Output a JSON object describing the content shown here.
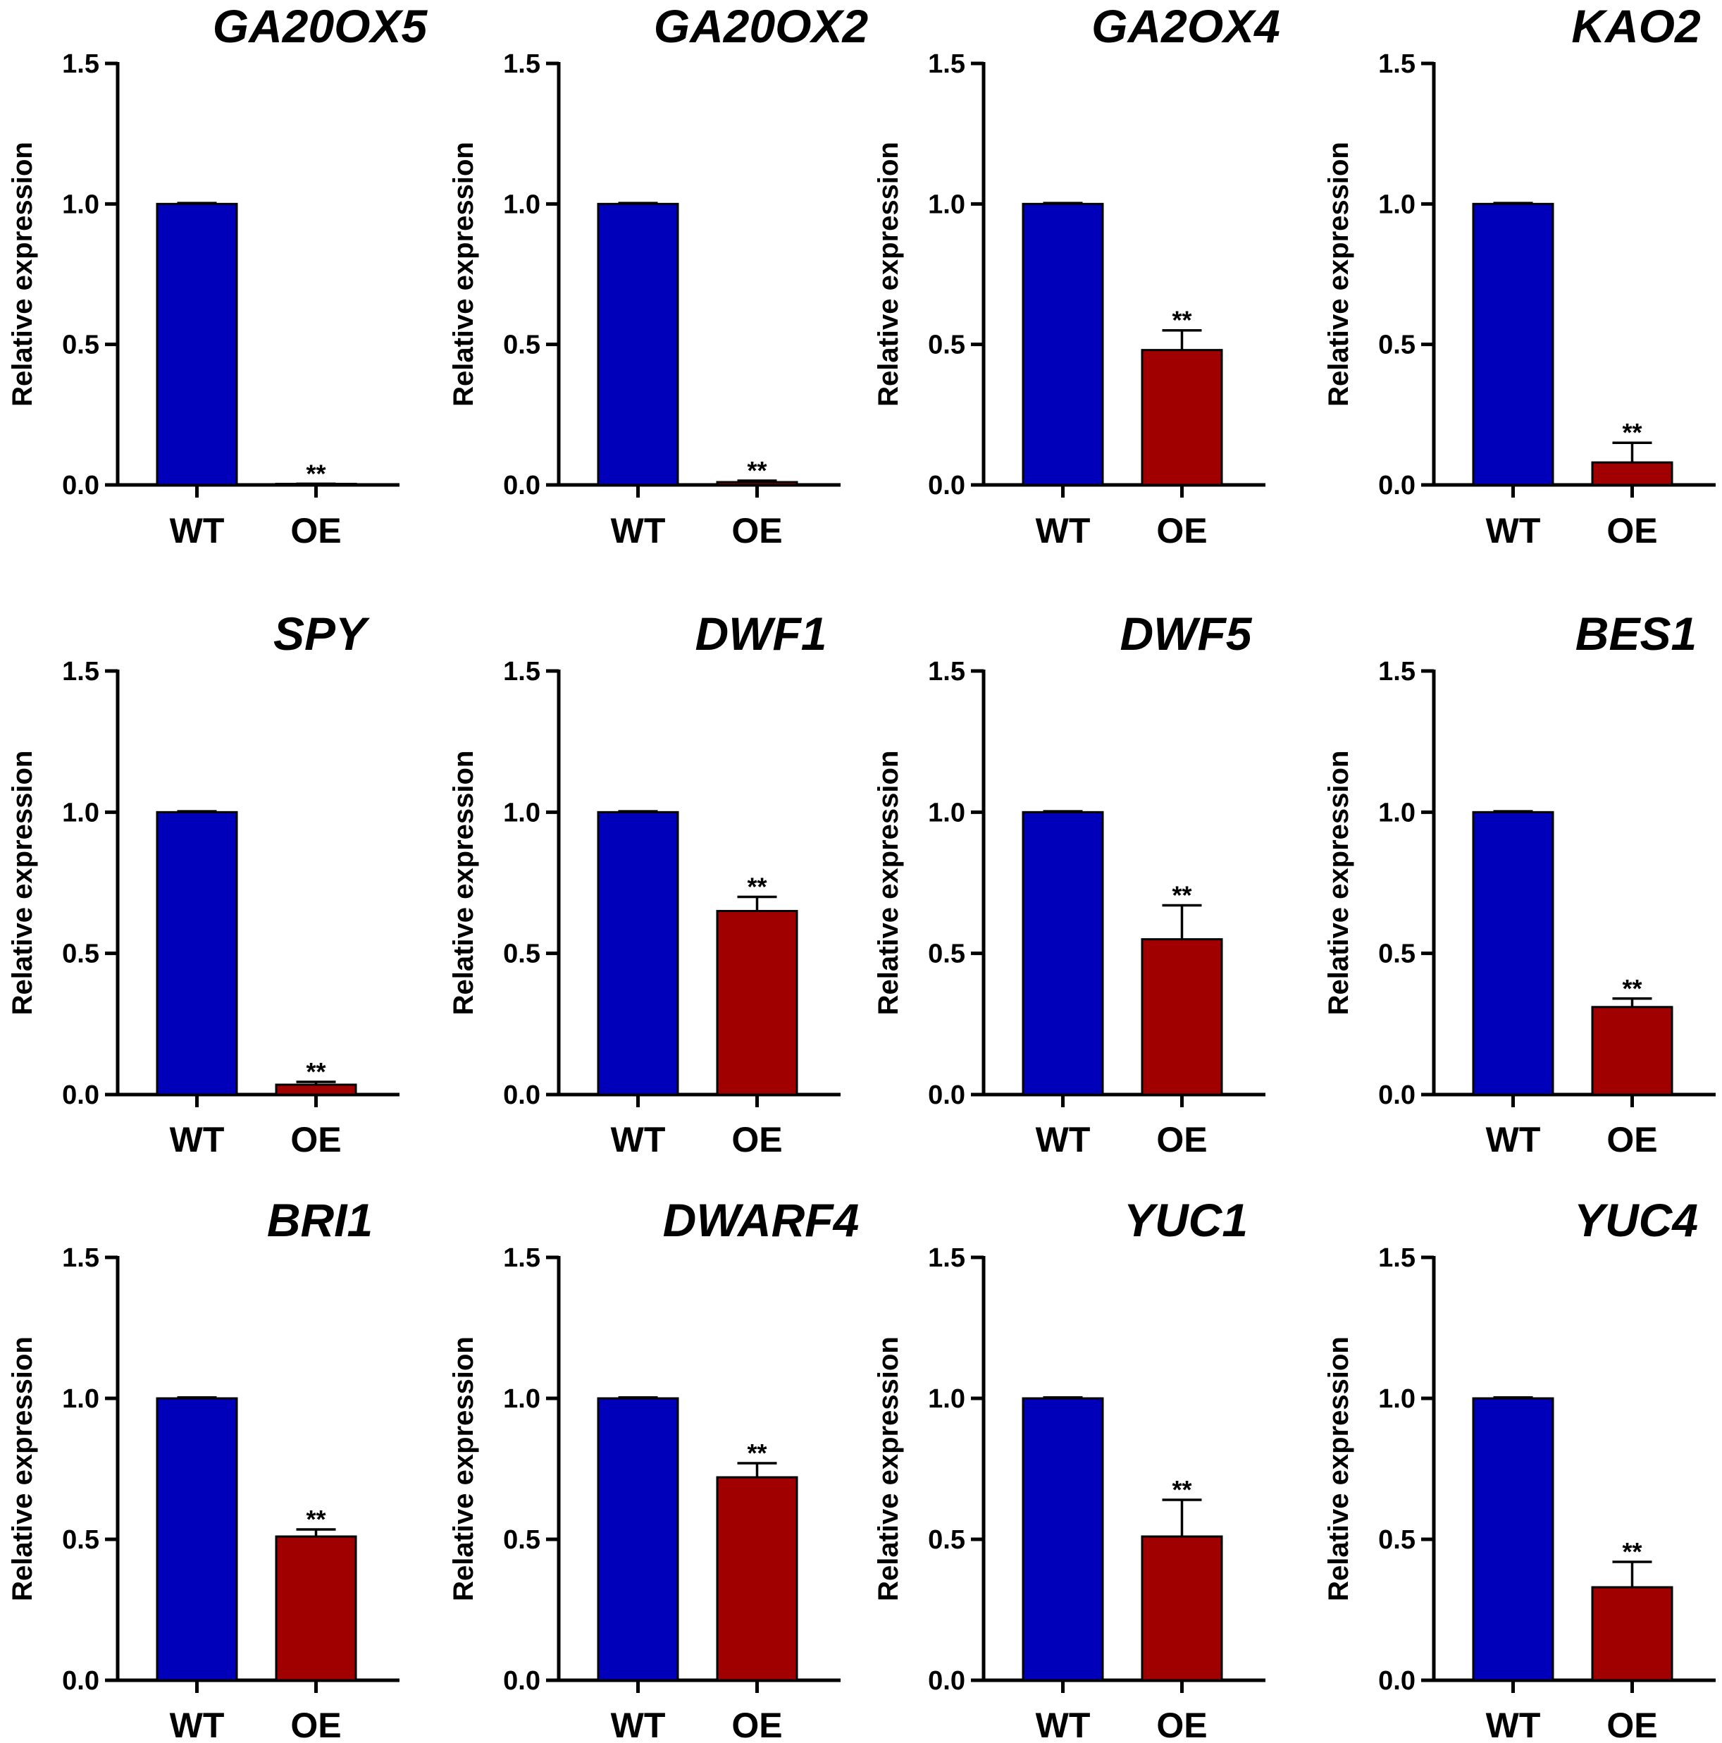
{
  "chart_data": [
    {
      "type": "bar",
      "title": "GA20OX5",
      "ylabel": "Relative expression",
      "xlabel": "",
      "categories": [
        "WT",
        "OE"
      ],
      "values": [
        1.0,
        0.002
      ],
      "errors": [
        0.003,
        0.002
      ],
      "significance": [
        "",
        "**"
      ],
      "ylim": [
        0,
        1.5
      ],
      "yticks": [
        "0.0",
        "0.5",
        "1.0",
        "1.5"
      ]
    },
    {
      "type": "bar",
      "title": "GA20OX2",
      "ylabel": "Relative expression",
      "xlabel": "",
      "categories": [
        "WT",
        "OE"
      ],
      "values": [
        1.0,
        0.01
      ],
      "errors": [
        0.003,
        0.005
      ],
      "significance": [
        "",
        "**"
      ],
      "ylim": [
        0,
        1.5
      ],
      "yticks": [
        "0.0",
        "0.5",
        "1.0",
        "1.5"
      ]
    },
    {
      "type": "bar",
      "title": "GA2OX4",
      "ylabel": "Relative expression",
      "xlabel": "",
      "categories": [
        "WT",
        "OE"
      ],
      "values": [
        1.0,
        0.48
      ],
      "errors": [
        0.003,
        0.07
      ],
      "significance": [
        "",
        "**"
      ],
      "ylim": [
        0,
        1.5
      ],
      "yticks": [
        "0.0",
        "0.5",
        "1.0",
        "1.5"
      ]
    },
    {
      "type": "bar",
      "title": "KAO2",
      "ylabel": "Relative expression",
      "xlabel": "",
      "categories": [
        "WT",
        "OE"
      ],
      "values": [
        1.0,
        0.08
      ],
      "errors": [
        0.003,
        0.07
      ],
      "significance": [
        "",
        "**"
      ],
      "ylim": [
        0,
        1.5
      ],
      "yticks": [
        "0.0",
        "0.5",
        "1.0",
        "1.5"
      ]
    },
    {
      "type": "bar",
      "title": "SPY",
      "ylabel": "Relative expression",
      "xlabel": "",
      "categories": [
        "WT",
        "OE"
      ],
      "values": [
        1.0,
        0.035
      ],
      "errors": [
        0.003,
        0.01
      ],
      "significance": [
        "",
        "**"
      ],
      "ylim": [
        0,
        1.5
      ],
      "yticks": [
        "0.0",
        "0.5",
        "1.0",
        "1.5"
      ]
    },
    {
      "type": "bar",
      "title": "DWF1",
      "ylabel": "Relative expression",
      "xlabel": "",
      "categories": [
        "WT",
        "OE"
      ],
      "values": [
        1.0,
        0.65
      ],
      "errors": [
        0.003,
        0.05
      ],
      "significance": [
        "",
        "**"
      ],
      "ylim": [
        0,
        1.5
      ],
      "yticks": [
        "0.0",
        "0.5",
        "1.0",
        "1.5"
      ]
    },
    {
      "type": "bar",
      "title": "DWF5",
      "ylabel": "Relative expression",
      "xlabel": "",
      "categories": [
        "WT",
        "OE"
      ],
      "values": [
        1.0,
        0.55
      ],
      "errors": [
        0.003,
        0.12
      ],
      "significance": [
        "",
        "**"
      ],
      "ylim": [
        0,
        1.5
      ],
      "yticks": [
        "0.0",
        "0.5",
        "1.0",
        "1.5"
      ]
    },
    {
      "type": "bar",
      "title": "BES1",
      "ylabel": "Relative expression",
      "xlabel": "",
      "categories": [
        "WT",
        "OE"
      ],
      "values": [
        1.0,
        0.31
      ],
      "errors": [
        0.003,
        0.03
      ],
      "significance": [
        "",
        "**"
      ],
      "ylim": [
        0,
        1.5
      ],
      "yticks": [
        "0.0",
        "0.5",
        "1.0",
        "1.5"
      ]
    },
    {
      "type": "bar",
      "title": "BRI1",
      "ylabel": "Relative expression",
      "xlabel": "",
      "categories": [
        "WT",
        "OE"
      ],
      "values": [
        1.0,
        0.51
      ],
      "errors": [
        0.003,
        0.025
      ],
      "significance": [
        "",
        "**"
      ],
      "ylim": [
        0,
        1.5
      ],
      "yticks": [
        "0.0",
        "0.5",
        "1.0",
        "1.5"
      ]
    },
    {
      "type": "bar",
      "title": "DWARF4",
      "ylabel": "Relative expression",
      "xlabel": "",
      "categories": [
        "WT",
        "OE"
      ],
      "values": [
        1.0,
        0.72
      ],
      "errors": [
        0.003,
        0.05
      ],
      "significance": [
        "",
        "**"
      ],
      "ylim": [
        0,
        1.5
      ],
      "yticks": [
        "0.0",
        "0.5",
        "1.0",
        "1.5"
      ]
    },
    {
      "type": "bar",
      "title": "YUC1",
      "ylabel": "Relative expression",
      "xlabel": "",
      "categories": [
        "WT",
        "OE"
      ],
      "values": [
        1.0,
        0.51
      ],
      "errors": [
        0.003,
        0.13
      ],
      "significance": [
        "",
        "**"
      ],
      "ylim": [
        0,
        1.5
      ],
      "yticks": [
        "0.0",
        "0.5",
        "1.0",
        "1.5"
      ]
    },
    {
      "type": "bar",
      "title": "YUC4",
      "ylabel": "Relative expression",
      "xlabel": "",
      "categories": [
        "WT",
        "OE"
      ],
      "values": [
        1.0,
        0.33
      ],
      "errors": [
        0.003,
        0.09
      ],
      "significance": [
        "",
        "**"
      ],
      "ylim": [
        0,
        1.5
      ],
      "yticks": [
        "0.0",
        "0.5",
        "1.0",
        "1.5"
      ]
    }
  ],
  "colors": {
    "wt_bar": "#0000bb",
    "oe_bar": "#a10000",
    "axis": "#000000"
  }
}
